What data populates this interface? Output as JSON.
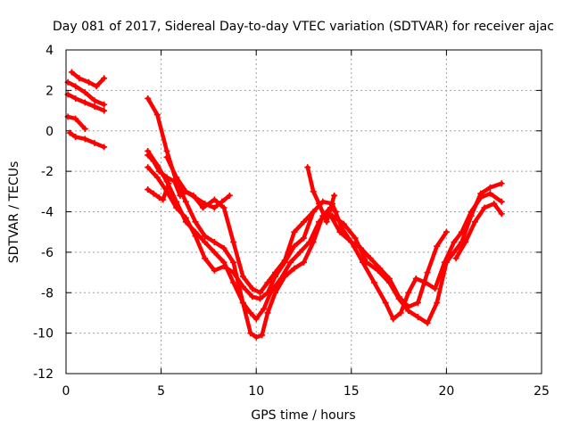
{
  "chart_data": {
    "type": "scatter",
    "title": "Day 081 of 2017, Sidereal Day-to-day VTEC variation (SDTVAR) for receiver ajac",
    "xlabel": "GPS time / hours",
    "ylabel": "SDTVAR / TECUs",
    "xlim": [
      0,
      25
    ],
    "ylim": [
      -12,
      4
    ],
    "xticks": [
      "0",
      "5",
      "10",
      "15",
      "20",
      "25"
    ],
    "yticks": [
      "4",
      "2",
      "0",
      "-2",
      "-4",
      "-6",
      "-8",
      "-10",
      "-12"
    ],
    "grid": true,
    "marker_color": "#ff0000",
    "series": [
      {
        "x": [
          0.1,
          0.5,
          1.0,
          1.5,
          2.0
        ],
        "y": [
          2.4,
          2.2,
          1.9,
          1.5,
          1.3
        ]
      },
      {
        "x": [
          0.3,
          0.7,
          1.2,
          1.6,
          2.0
        ],
        "y": [
          2.9,
          2.6,
          2.4,
          2.2,
          2.6
        ]
      },
      {
        "x": [
          0.1,
          0.5,
          1.0,
          1.5,
          2.0
        ],
        "y": [
          1.8,
          1.6,
          1.4,
          1.2,
          1.0
        ]
      },
      {
        "x": [
          0.1,
          0.5,
          1.0
        ],
        "y": [
          0.7,
          0.6,
          0.1
        ]
      },
      {
        "x": [
          0.2,
          0.5,
          1.0,
          1.5,
          2.0
        ],
        "y": [
          -0.1,
          -0.3,
          -0.4,
          -0.6,
          -0.8
        ]
      },
      {
        "x": [
          4.3,
          4.8,
          5.3,
          5.8,
          6.3,
          6.8,
          7.3,
          7.8,
          8.3,
          8.8,
          9.3,
          9.7,
          10.0,
          10.3,
          10.6,
          11.0,
          11.5,
          12.0,
          12.5,
          13.0,
          13.5,
          13.9,
          14.2
        ],
        "y": [
          1.6,
          0.8,
          -1.0,
          -2.5,
          -3.5,
          -4.5,
          -5.2,
          -5.5,
          -5.8,
          -6.5,
          -8.5,
          -10.0,
          -10.2,
          -10.1,
          -9.0,
          -8.0,
          -7.2,
          -6.8,
          -6.5,
          -5.5,
          -4.2,
          -3.8,
          -4.0
        ]
      },
      {
        "x": [
          4.3,
          4.8,
          5.3,
          5.8,
          6.3,
          6.8,
          7.3,
          7.8,
          8.3,
          8.8,
          9.3,
          9.7,
          10.0,
          10.4,
          10.8,
          11.3,
          11.8,
          12.3,
          12.8,
          13.3,
          13.8,
          14.4,
          15.0,
          15.6,
          16.2,
          16.8,
          17.2,
          17.6,
          18.0,
          18.4,
          18.9,
          19.4,
          19.9,
          20.4,
          20.8,
          21.3,
          21.8,
          22.3,
          22.9
        ],
        "y": [
          -1.0,
          -1.7,
          -2.5,
          -3.5,
          -4.5,
          -5.0,
          -5.5,
          -6.0,
          -6.5,
          -7.5,
          -8.5,
          -9.0,
          -9.3,
          -8.8,
          -7.9,
          -7.3,
          -6.5,
          -6.0,
          -5.5,
          -4.5,
          -4.0,
          -5.0,
          -5.5,
          -6.5,
          -7.5,
          -8.5,
          -9.3,
          -9.0,
          -8.0,
          -7.3,
          -7.5,
          -7.8,
          -6.5,
          -5.5,
          -5.0,
          -4.0,
          -3.3,
          -3.1,
          -3.5
        ]
      },
      {
        "x": [
          4.3,
          4.8,
          5.3,
          5.8,
          6.3,
          6.8,
          7.3,
          7.8,
          8.3,
          8.8,
          9.3,
          9.8,
          10.2,
          10.6,
          11.0,
          11.5,
          12.0,
          12.5,
          13.0,
          13.5,
          14.0,
          14.5,
          15.0,
          15.5,
          16.0,
          16.5,
          17.0,
          17.5,
          18.0,
          18.5,
          19.0,
          19.5,
          20.0
        ],
        "y": [
          -1.8,
          -2.3,
          -3.0,
          -3.8,
          -4.3,
          -5.2,
          -6.3,
          -6.9,
          -6.7,
          -7.0,
          -7.7,
          -8.2,
          -8.3,
          -8.0,
          -7.2,
          -6.5,
          -5.7,
          -5.3,
          -4.0,
          -3.5,
          -3.6,
          -4.8,
          -5.5,
          -5.8,
          -6.3,
          -6.8,
          -7.3,
          -8.2,
          -8.7,
          -8.5,
          -7.0,
          -5.7,
          -5.0
        ]
      },
      {
        "x": [
          4.3,
          4.6,
          4.9,
          5.3,
          5.7,
          6.0,
          6.3,
          6.7,
          7.2,
          7.8,
          8.3,
          8.8,
          9.3,
          9.8,
          10.2,
          10.6,
          11.0,
          11.5,
          12.0,
          12.5,
          13.0
        ],
        "y": [
          -1.2,
          -1.5,
          -2.0,
          -2.3,
          -2.5,
          -3.2,
          -3.0,
          -3.2,
          -3.8,
          -3.4,
          -3.8,
          -5.5,
          -7.2,
          -7.8,
          -8.0,
          -7.5,
          -7.0,
          -6.4,
          -5.0,
          -4.5,
          -4.0
        ]
      },
      {
        "x": [
          4.3,
          4.6,
          4.9,
          5.1,
          5.4
        ],
        "y": [
          -2.9,
          -3.1,
          -3.3,
          -3.4,
          -2.6
        ]
      },
      {
        "x": [
          5.3,
          5.8,
          6.3,
          6.8,
          7.3,
          7.8,
          8.2,
          8.6
        ],
        "y": [
          -1.3,
          -2.3,
          -3.0,
          -3.3,
          -3.6,
          -3.8,
          -3.5,
          -3.2
        ]
      },
      {
        "x": [
          12.7,
          13.0,
          13.3,
          13.7,
          14.1
        ],
        "y": [
          -1.8,
          -3.0,
          -3.6,
          -4.5,
          -3.2
        ]
      },
      {
        "x": [
          13.5,
          14.0,
          14.6,
          15.2,
          15.8,
          16.4,
          17.0,
          17.5,
          18.0,
          18.5,
          19.0,
          19.5,
          20.0,
          20.4,
          20.8,
          21.3,
          21.8,
          22.3,
          22.9
        ],
        "y": [
          -4.3,
          -4.2,
          -4.6,
          -5.3,
          -6.5,
          -6.9,
          -7.5,
          -8.3,
          -8.9,
          -9.2,
          -9.5,
          -8.5,
          -6.5,
          -6.0,
          -5.5,
          -4.2,
          -3.1,
          -2.8,
          -2.6
        ]
      },
      {
        "x": [
          20.5,
          21.0,
          21.5,
          22.0,
          22.5,
          22.9
        ],
        "y": [
          -6.3,
          -5.5,
          -4.5,
          -3.8,
          -3.6,
          -4.1
        ]
      }
    ]
  }
}
